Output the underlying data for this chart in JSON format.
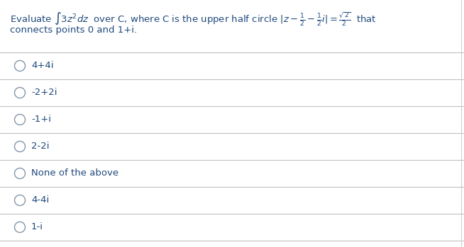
{
  "question_line1_plain1": "Evaluate ",
  "question_line1_math": "$\\int 3z^2dz$",
  "question_line1_plain2": " over C, where C is the upper half circle ",
  "question_line1_math2": "$|z - \\frac{1}{2} - \\frac{1}{2}i| = \\frac{\\sqrt{2}}{2}$",
  "question_line1_plain3": " that",
  "question_line2": "connects points 0 and 1+i.",
  "options": [
    "4+4i",
    "-2+2i",
    "-1+i",
    "2-2i",
    "None of the above",
    "4-4i",
    "1-i"
  ],
  "bg_color": "#ffffff",
  "text_color": "#1f497d",
  "question_color": "#1f497d",
  "separator_color": "#c0c0c0",
  "font_size": 9.5,
  "option_font_size": 9.5,
  "figsize": [
    6.54,
    3.49
  ],
  "dpi": 100
}
